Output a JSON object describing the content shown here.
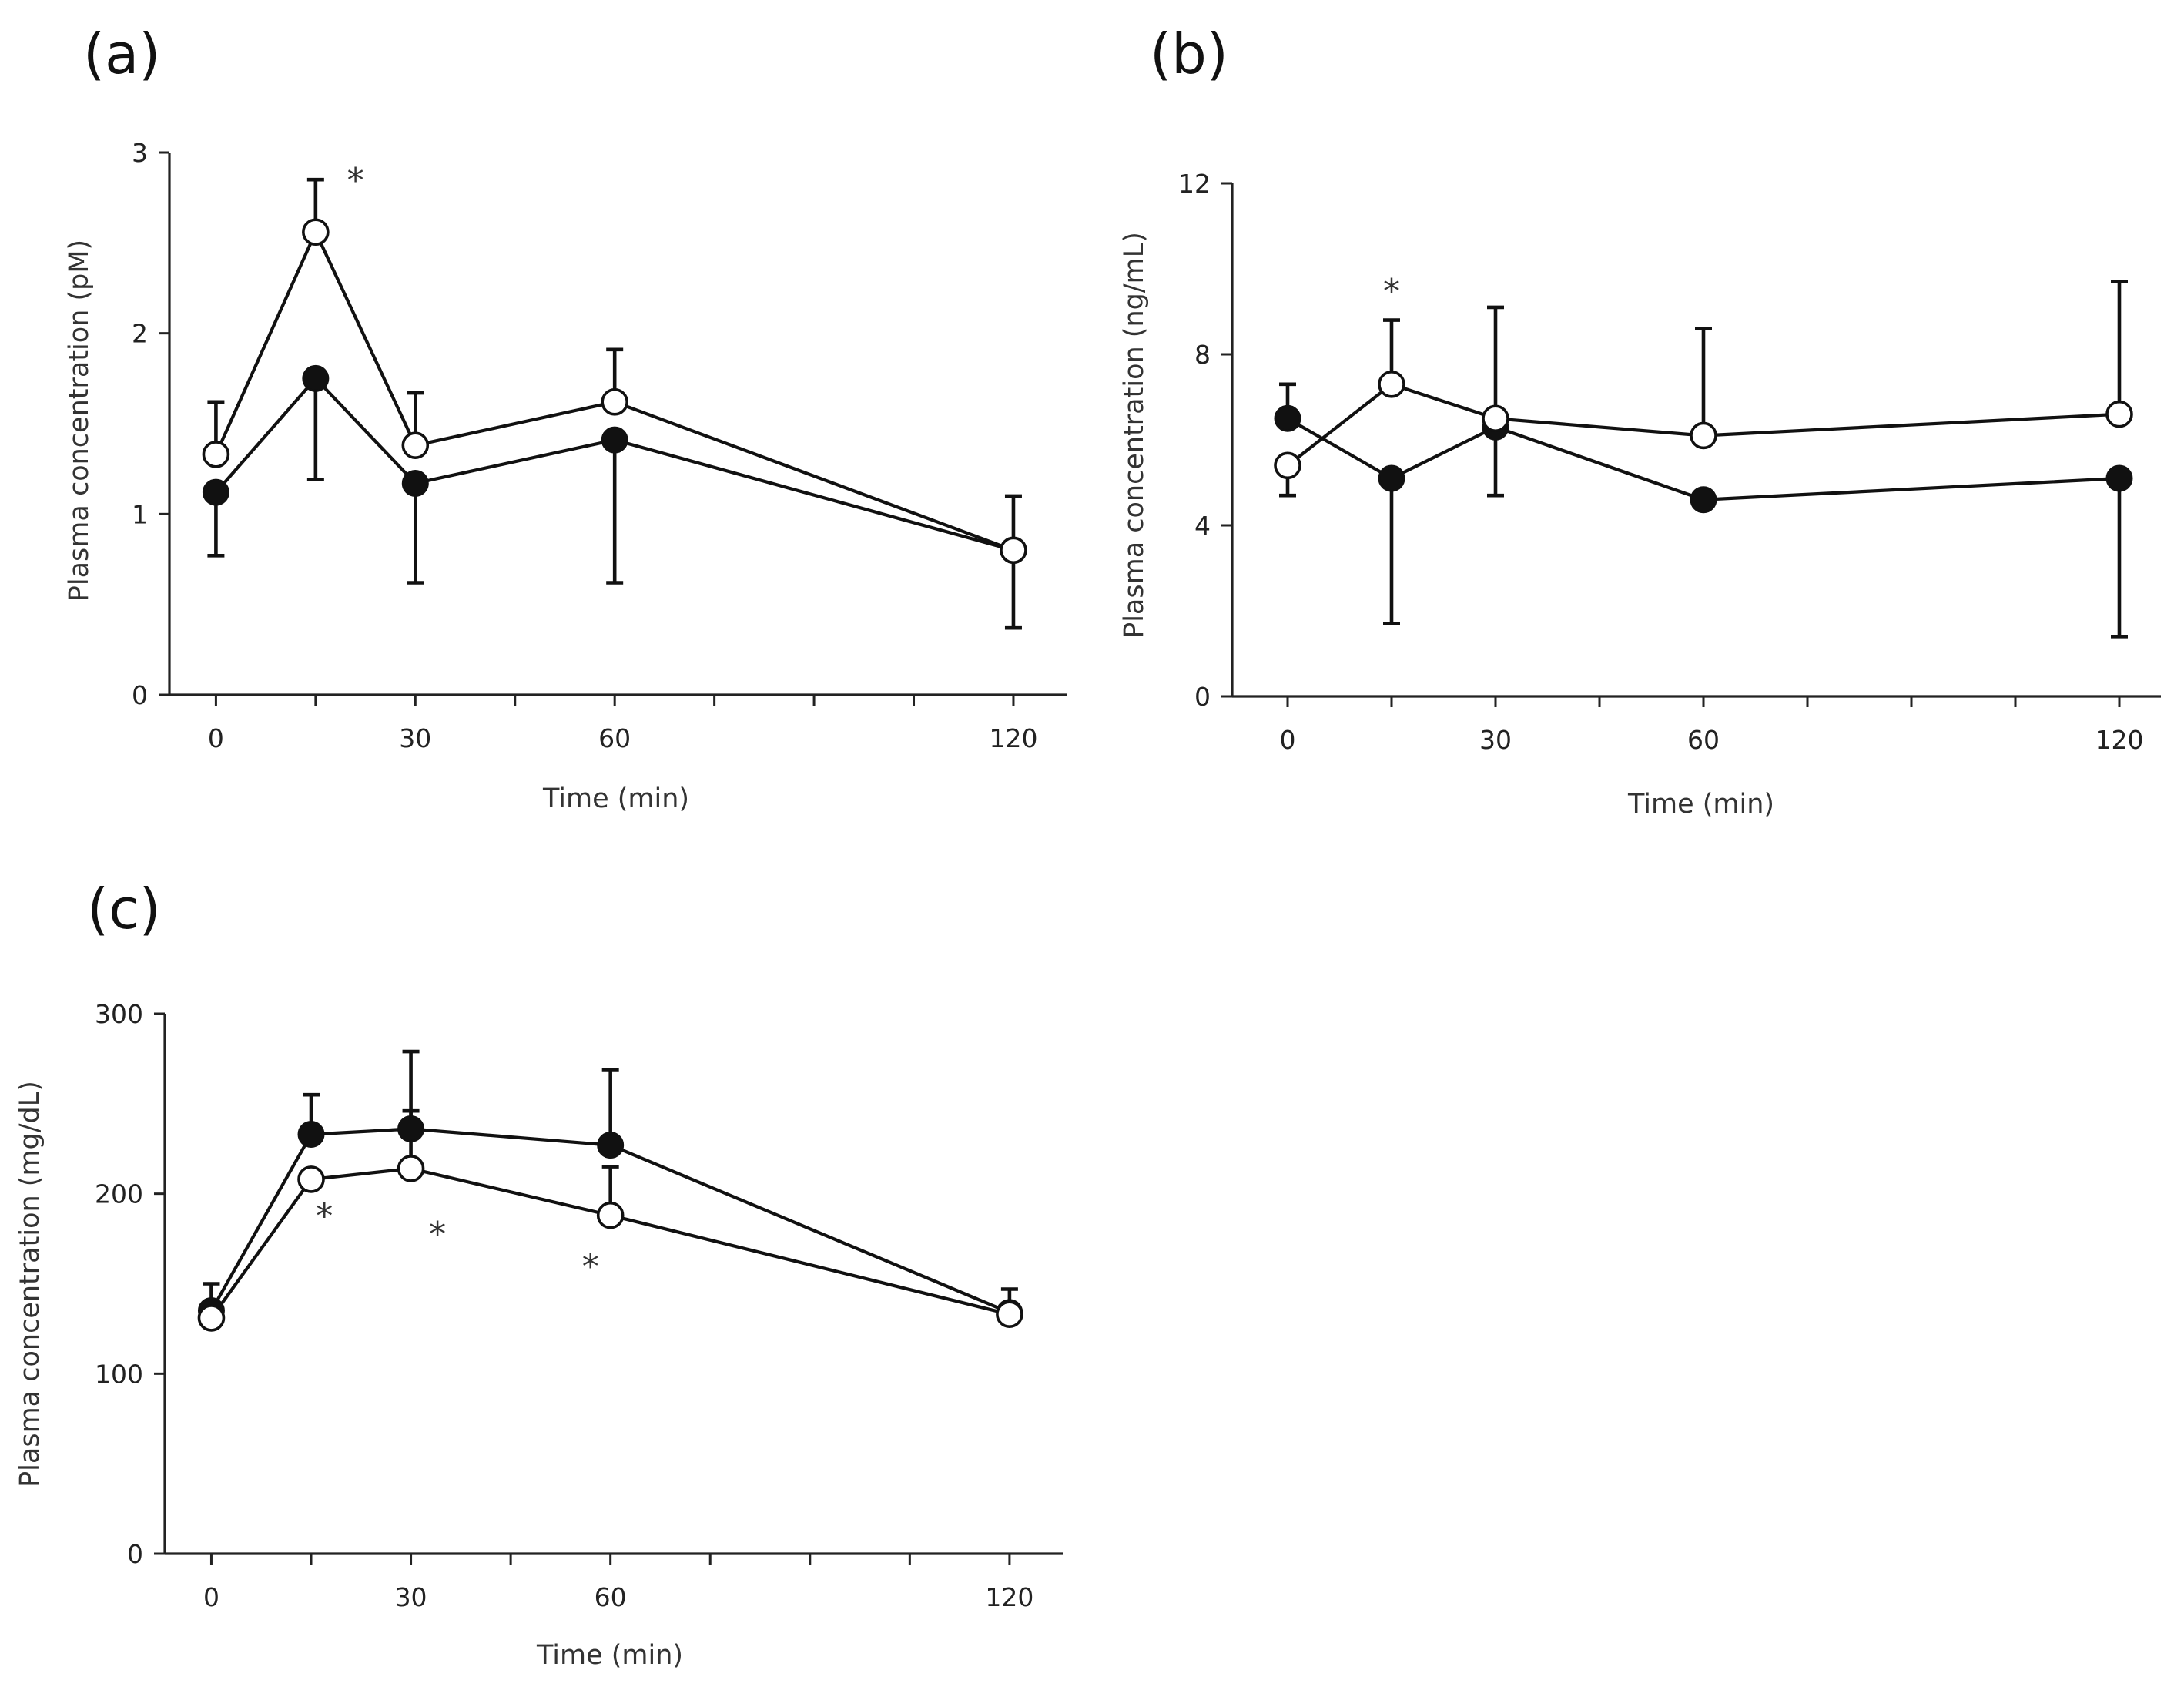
{
  "chart_data": [
    {
      "type": "line",
      "panel_label": "(a)",
      "xlabel": "Time (min)",
      "ylabel": "Plasma concentration (pM)",
      "x_ticks": [
        0,
        30,
        60,
        120
      ],
      "x_ticks_minor": [
        15,
        45,
        75,
        90,
        105
      ],
      "xlim": [
        -7,
        128
      ],
      "y_ticks": [
        0,
        1,
        2,
        3
      ],
      "ylim": [
        0,
        3
      ],
      "x": [
        0,
        15,
        30,
        60,
        120
      ],
      "series": [
        {
          "marker": "filled",
          "values": [
            1.12,
            1.75,
            1.17,
            1.41,
            0.8
          ],
          "error_bars": [
            {
              "dir": "down",
              "to": 0.77
            },
            {
              "dir": "down",
              "to": 1.19
            },
            {
              "dir": "down",
              "to": 0.62
            },
            {
              "dir": "down",
              "to": 0.62
            },
            {
              "dir": "down",
              "to": 0.37
            }
          ]
        },
        {
          "marker": "open",
          "values": [
            1.33,
            2.56,
            1.38,
            1.62,
            0.8
          ],
          "error_bars": [
            {
              "dir": "up",
              "to": 1.62
            },
            {
              "dir": "up",
              "to": 2.85
            },
            {
              "dir": "up",
              "to": 1.67
            },
            {
              "dir": "up",
              "to": 1.91
            },
            {
              "dir": "up",
              "to": 1.1
            }
          ]
        }
      ],
      "annotations": [
        {
          "text": "*",
          "x": 21,
          "y": 2.85
        }
      ]
    },
    {
      "type": "line",
      "panel_label": "(b)",
      "xlabel": "Time  (min)",
      "ylabel": "Plasma concentration (ng/mL)",
      "x_ticks": [
        0,
        30,
        60,
        120
      ],
      "x_ticks_minor": [
        15,
        45,
        75,
        90,
        105
      ],
      "xlim": [
        -8,
        126
      ],
      "y_ticks": [
        0,
        4,
        8,
        12
      ],
      "ylim": [
        0,
        12
      ],
      "x": [
        0,
        15,
        30,
        60,
        120
      ],
      "series": [
        {
          "marker": "filled",
          "values": [
            6.5,
            5.1,
            6.3,
            4.6,
            5.1
          ],
          "error_bars": [
            {
              "dir": "up",
              "to": 7.3
            },
            {
              "dir": "down",
              "to": 1.7
            },
            {
              "dir": "down",
              "to": 4.7
            },
            null,
            {
              "dir": "down",
              "to": 1.4
            }
          ]
        },
        {
          "marker": "open",
          "values": [
            5.4,
            7.3,
            6.5,
            6.1,
            6.6
          ],
          "error_bars": [
            {
              "dir": "down",
              "to": 4.7
            },
            {
              "dir": "up",
              "to": 8.8
            },
            {
              "dir": "up",
              "to": 9.1
            },
            {
              "dir": "up",
              "to": 8.6
            },
            {
              "dir": "up",
              "to": 9.7
            }
          ]
        }
      ],
      "annotations": [
        {
          "text": "*",
          "x": 15,
          "y": 9.5
        }
      ]
    },
    {
      "type": "line",
      "panel_label": "(c)",
      "xlabel": "Time (min)",
      "ylabel": "Plasma concentration (mg/dL)",
      "x_ticks": [
        0,
        30,
        60,
        120
      ],
      "x_ticks_minor": [
        15,
        45,
        75,
        90,
        105
      ],
      "xlim": [
        -7,
        128
      ],
      "y_ticks": [
        0,
        100,
        200,
        300
      ],
      "ylim": [
        0,
        300
      ],
      "x": [
        0,
        15,
        30,
        60,
        120
      ],
      "series": [
        {
          "marker": "filled",
          "values": [
            135,
            233,
            236,
            227,
            134
          ],
          "error_bars": [
            {
              "dir": "up",
              "to": 150
            },
            {
              "dir": "up",
              "to": 255
            },
            {
              "dir": "up",
              "to": 279
            },
            {
              "dir": "up",
              "to": 269
            },
            {
              "dir": "up",
              "to": 147
            }
          ]
        },
        {
          "marker": "open",
          "values": [
            131,
            208,
            214,
            188,
            133
          ],
          "error_bars": [
            null,
            null,
            {
              "dir": "up",
              "to": 246
            },
            {
              "dir": "up",
              "to": 215
            },
            null
          ]
        }
      ],
      "annotations": [
        {
          "text": "*",
          "x": 17,
          "y": 188
        },
        {
          "text": "*",
          "x": 34,
          "y": 178
        },
        {
          "text": "*",
          "x": 57,
          "y": 160
        }
      ]
    }
  ]
}
